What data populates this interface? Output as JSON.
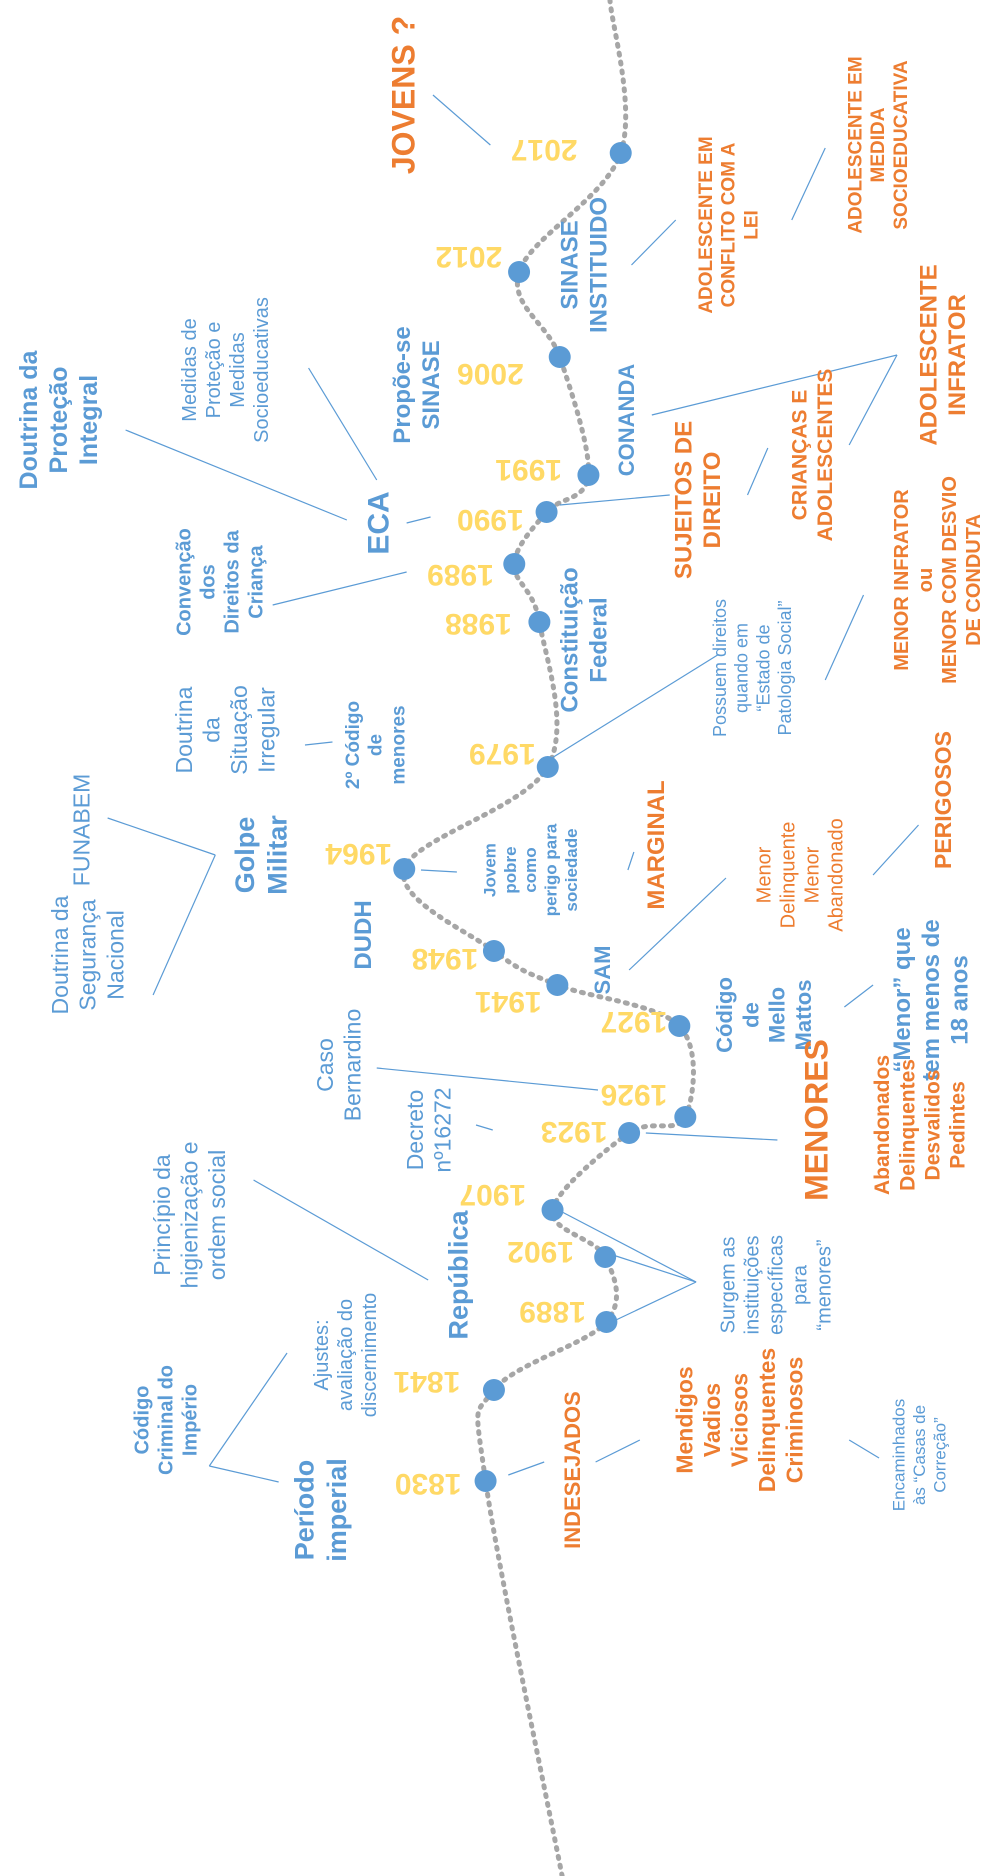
{
  "years": [
    "2017",
    "2012",
    "2006",
    "1991",
    "1990",
    "1989",
    "1988",
    "1979",
    "1964",
    "1948",
    "1941",
    "1927",
    "1926",
    "1923",
    "1907",
    "1902",
    "1889",
    "1841",
    "1830"
  ],
  "labels": [
    {
      "lines": [
        "JOVENS ?"
      ]
    },
    {
      "lines": [
        "SINASE",
        "INSTITUIDO"
      ]
    },
    {
      "lines": [
        "ADOLESCENTE EM",
        "CONFLITO COM A",
        "LEI"
      ]
    },
    {
      "lines": [
        "ADOLESCENTE EM",
        "MEDIDA",
        "SOCIOEDUCATIVA"
      ]
    },
    {
      "lines": [
        "Propõe-se",
        "SINASE"
      ]
    },
    {
      "lines": [
        "Medidas de",
        "Proteção e",
        "Medidas",
        "Socioeducativas"
      ]
    },
    {
      "lines": [
        "Doutrina da",
        "Proteção",
        "Integral"
      ]
    },
    {
      "lines": [
        "CONANDA"
      ]
    },
    {
      "lines": [
        "ADOLESCENTE",
        "INFRATOR"
      ]
    },
    {
      "lines": [
        "CRIANÇAS E",
        "ADOLESCENTES"
      ]
    },
    {
      "lines": [
        "SUJEITOS DE",
        "DIREITO"
      ]
    },
    {
      "lines": [
        "ECA"
      ]
    },
    {
      "lines": [
        "Convenção",
        "dos",
        "Direitos da",
        "Criança"
      ]
    },
    {
      "lines": [
        "Constituição",
        "Federal"
      ]
    },
    {
      "lines": [
        "Possuem direitos",
        "quando em",
        "“Estado de",
        "Patologia Social”"
      ]
    },
    {
      "lines": [
        "MENOR INFRATOR",
        "ou",
        "MENOR COM DESVIO",
        "DE CONDUTA"
      ]
    },
    {
      "lines": [
        "Doutrina",
        "da",
        "Situação",
        "Irregular"
      ]
    },
    {
      "lines": [
        "2º Código",
        "de",
        "menores"
      ]
    },
    {
      "lines": [
        "FUNABEM"
      ]
    },
    {
      "lines": [
        "Golpe",
        "Militar"
      ]
    },
    {
      "lines": [
        "Jovem",
        "pobre",
        "como",
        "perigo para",
        "sociedade"
      ]
    },
    {
      "lines": [
        "MARGINAL"
      ]
    },
    {
      "lines": [
        "Menor",
        "Delinquente",
        "Menor",
        "Abandonado"
      ]
    },
    {
      "lines": [
        "PERIGOSOS"
      ]
    },
    {
      "lines": [
        "DUDH"
      ]
    },
    {
      "lines": [
        "Doutrina da",
        "Segurança",
        "Nacional"
      ]
    },
    {
      "lines": [
        "SAM"
      ]
    },
    {
      "lines": [
        "Código",
        "de",
        "Mello",
        "Mattos"
      ]
    },
    {
      "lines": [
        "“Menor” que",
        "tem menos de",
        "18 anos"
      ]
    },
    {
      "lines": [
        "Caso",
        "Bernardino"
      ]
    },
    {
      "lines": [
        "MENORES"
      ]
    },
    {
      "lines": [
        "Abandonados",
        "Delinquentes",
        "Desvalidos",
        "Pedintes"
      ]
    },
    {
      "lines": [
        "Decreto",
        "nº16272"
      ]
    },
    {
      "lines": [
        "Princípio da",
        "higienização e",
        "ordem social"
      ]
    },
    {
      "lines": [
        "República"
      ]
    },
    {
      "lines": [
        "Surgem as",
        "instituições",
        "específicas",
        "para",
        "“menores”"
      ]
    },
    {
      "lines": [
        "Ajustes:",
        "avaliação do",
        "discernimento"
      ]
    },
    {
      "lines": [
        "Código",
        "Criminal do",
        "Império"
      ]
    },
    {
      "lines": [
        "Período",
        "imperial"
      ]
    },
    {
      "lines": [
        "INDESEJADOS"
      ]
    },
    {
      "lines": [
        "Mendigos",
        "Vadios",
        "Viciosos",
        "Delinquentes",
        "Criminosos"
      ]
    },
    {
      "lines": [
        "Encaminhados",
        "às “Casas de",
        "Correção”"
      ]
    }
  ]
}
